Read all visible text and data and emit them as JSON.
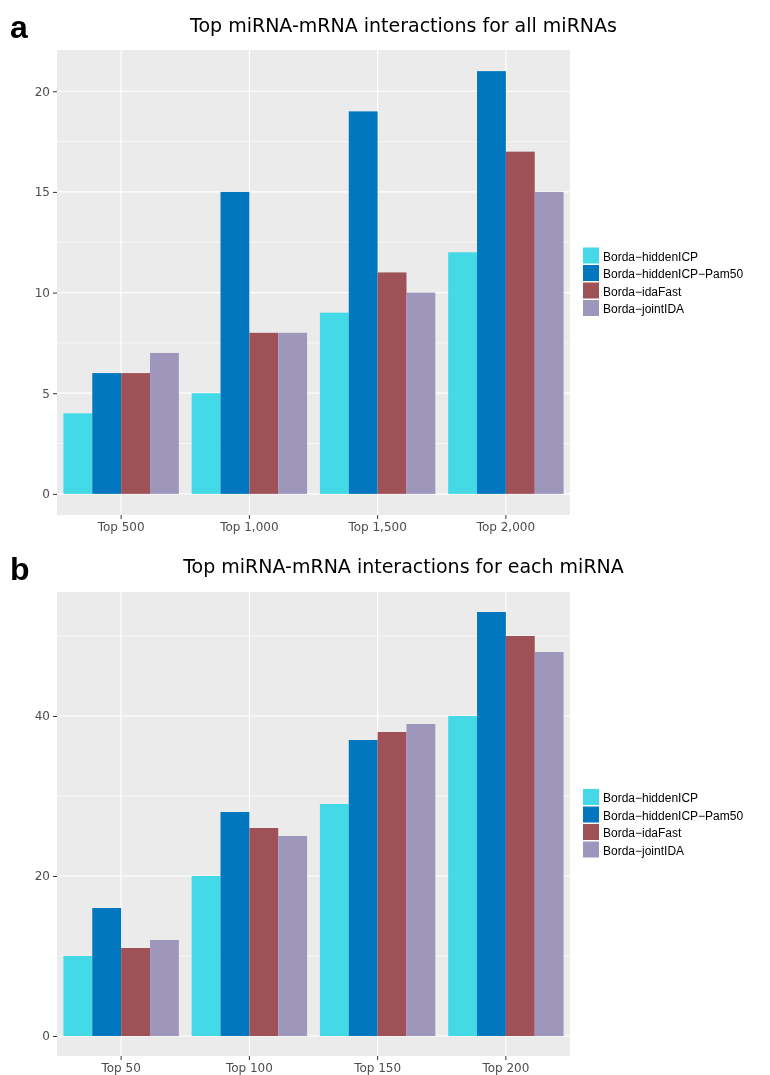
{
  "chart_data": [
    {
      "type": "bar",
      "title": "Top miRNA-mRNA interactions for all miRNAs",
      "annotations": [
        "a"
      ],
      "categories": [
        "Top 500",
        "Top 1,000",
        "Top 1,500",
        "Top 2,000"
      ],
      "series": [
        {
          "name": "Borda−hiddenICP",
          "color": "#43d9e6",
          "values": [
            4,
            5,
            9,
            12
          ]
        },
        {
          "name": "Borda−hiddenICP−Pam50",
          "color": "#0077bf",
          "values": [
            6,
            15,
            19,
            21
          ]
        },
        {
          "name": "Borda−idaFast",
          "color": "#9e5257",
          "values": [
            6,
            8,
            11,
            17
          ]
        },
        {
          "name": "Borda−jointIDA",
          "color": "#9f96bb",
          "values": [
            7,
            8,
            10,
            15
          ]
        }
      ],
      "ylim": [
        -1.05,
        22.05
      ],
      "yticks": [
        0,
        5,
        10,
        15,
        20
      ],
      "grid": true,
      "legend": "right"
    },
    {
      "type": "bar",
      "title": "Top miRNA-mRNA interactions for each miRNA",
      "annotations": [
        "b"
      ],
      "categories": [
        "Top 50",
        "Top 100",
        "Top 150",
        "Top 200"
      ],
      "series": [
        {
          "name": "Borda−hiddenICP",
          "color": "#43d9e6",
          "values": [
            10,
            20,
            29,
            40
          ]
        },
        {
          "name": "Borda−hiddenICP−Pam50",
          "color": "#0077bf",
          "values": [
            16,
            28,
            37,
            53
          ]
        },
        {
          "name": "Borda−idaFast",
          "color": "#9e5257",
          "values": [
            11,
            26,
            38,
            50
          ]
        },
        {
          "name": "Borda−jointIDA",
          "color": "#9f96bb",
          "values": [
            12,
            25,
            39,
            48
          ]
        }
      ],
      "ylim": [
        -2.5,
        55.5
      ],
      "yticks": [
        0,
        20,
        40
      ],
      "grid": true,
      "legend": "right"
    }
  ]
}
